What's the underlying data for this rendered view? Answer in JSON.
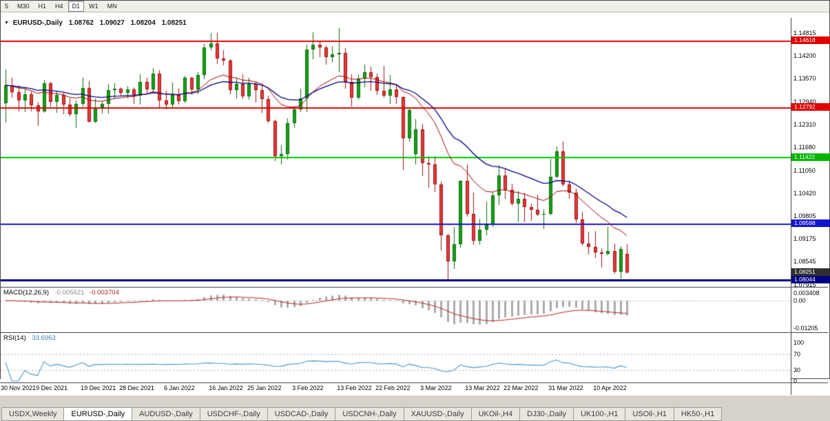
{
  "toolbar": {
    "timeframes": [
      {
        "label": "5",
        "active": false
      },
      {
        "label": "M30",
        "active": false
      },
      {
        "label": "H1",
        "active": false
      },
      {
        "label": "H4",
        "active": false
      },
      {
        "label": "D1",
        "active": true
      },
      {
        "label": "W1",
        "active": false
      },
      {
        "label": "MN",
        "active": false
      }
    ]
  },
  "chart": {
    "header": {
      "symbol": "EURUSD-,Daily",
      "open": "1.08762",
      "high": "1.09027",
      "low": "1.08204",
      "close": "1.08251"
    },
    "price_axis": [
      "1.14815",
      "1.14200",
      "1.13570",
      "1.12940",
      "1.12310",
      "1.11680",
      "1.11050",
      "1.10420",
      "1.09805",
      "1.09175",
      "1.08545",
      "1.07915"
    ],
    "badges": [
      {
        "label": "1.14618",
        "color": "#e00000"
      },
      {
        "label": "1.12792",
        "color": "#e00000"
      },
      {
        "label": "1.11422",
        "color": "#00b400"
      },
      {
        "label": "1.09598",
        "color": "#1414cc"
      },
      {
        "label": "1.08251",
        "color": "#2f2f2f"
      },
      {
        "label": "1.08044",
        "color": "#000080"
      }
    ],
    "date_labels": [
      "30 Nov 2021",
      "9 Dec 2021",
      "19 Dec 2021",
      "28 Dec 2021",
      "6 Jan 2022",
      "16 Jan 2022",
      "25 Jan 2022",
      "3 Feb 2022",
      "13 Feb 2022",
      "22 Feb 2022",
      "3 Mar 2022",
      "13 Mar 2022",
      "22 Mar 2022",
      "31 Mar 2022",
      "10 Apr 2022"
    ]
  },
  "macd": {
    "name": "MACD(12,26,9)",
    "main_value": "-0.005621",
    "signal_value": "-0.003704",
    "axis": [
      "0.003408",
      "0.00",
      "-0.01205"
    ]
  },
  "rsi": {
    "name": "RSI(14)",
    "value": "33.6963",
    "axis": [
      "100",
      "70",
      "30",
      "0"
    ]
  },
  "tabs": [
    {
      "label": "USDX,Weekly",
      "active": false
    },
    {
      "label": "EURUSD-,Daily",
      "active": true
    },
    {
      "label": "AUDUSD-,Daily",
      "active": false
    },
    {
      "label": "USDCHF-,Daily",
      "active": false
    },
    {
      "label": "USDCAD-,Daily",
      "active": false
    },
    {
      "label": "USDCNH-,Daily",
      "active": false
    },
    {
      "label": "XAUUSD-,Daily",
      "active": false
    },
    {
      "label": "UKOil-,H4",
      "active": false
    },
    {
      "label": "DJ30-,Daily",
      "active": false
    },
    {
      "label": "UK100-,H1",
      "active": false
    },
    {
      "label": "USOil-,H1",
      "active": false
    },
    {
      "label": "HK50-,H1",
      "active": false
    }
  ],
  "chart_data": {
    "type": "candlestick",
    "title": "EURUSD-,Daily",
    "symbol": "EURUSD",
    "timeframe": "D1",
    "current_bar": {
      "open": 1.08762,
      "high": 1.09027,
      "low": 1.08204,
      "close": 1.08251
    },
    "y_range": [
      1.0785,
      1.1524
    ],
    "x_tick_labels": [
      "30 Nov 2021",
      "9 Dec 2021",
      "19 Dec 2021",
      "28 Dec 2021",
      "6 Jan 2022",
      "16 Jan 2022",
      "25 Jan 2022",
      "3 Feb 2022",
      "13 Feb 2022",
      "22 Feb 2022",
      "3 Mar 2022",
      "13 Mar 2022",
      "22 Mar 2022",
      "31 Mar 2022",
      "10 Apr 2022"
    ],
    "x_tick_indices": [
      0,
      7,
      14,
      20,
      27,
      34,
      40,
      47,
      54,
      60,
      67,
      74,
      80,
      87,
      94
    ],
    "horizontal_lines": [
      {
        "price": 1.14618,
        "color": "#e00000",
        "width": 2
      },
      {
        "price": 1.12792,
        "color": "#e00000",
        "width": 2
      },
      {
        "price": 1.11422,
        "color": "#00c400",
        "width": 2
      },
      {
        "price": 1.09598,
        "color": "#1414d2",
        "width": 2
      },
      {
        "price": 1.08044,
        "color": "#00007a",
        "width": 3
      }
    ],
    "moving_averages": [
      {
        "type": "ema",
        "period": 15,
        "color": "#a00000",
        "width": 1
      },
      {
        "type": "ema",
        "period": 26,
        "color": "#000080",
        "width": 1.3
      }
    ],
    "candle_colors": {
      "up_fill": "#16a016",
      "up_border": "#0b6b0b",
      "down_fill": "#e23b3b",
      "down_border": "#a01010"
    },
    "indicators": [
      {
        "name": "MACD",
        "params": [
          12,
          26,
          9
        ],
        "current_main": -0.005621,
        "current_signal": -0.003704,
        "histogram_color": "#ababab",
        "signal_color": "#b22222",
        "y_ticks": [
          0.003408,
          0,
          -0.01205
        ]
      },
      {
        "name": "RSI",
        "params": [
          14
        ],
        "current_value": 33.6963,
        "line_color": "#4a96c8",
        "levels": [
          100,
          70,
          30,
          0
        ]
      }
    ],
    "ohlc": [
      [
        1.1289,
        1.1383,
        1.1236,
        1.1339
      ],
      [
        1.1339,
        1.136,
        1.1305,
        1.1319
      ],
      [
        1.1319,
        1.1339,
        1.1267,
        1.1297
      ],
      [
        1.1297,
        1.1334,
        1.1266,
        1.1314
      ],
      [
        1.1314,
        1.1321,
        1.1267,
        1.1284
      ],
      [
        1.1284,
        1.1292,
        1.1228,
        1.1267
      ],
      [
        1.1267,
        1.1354,
        1.1263,
        1.1344
      ],
      [
        1.1344,
        1.1348,
        1.128,
        1.1293
      ],
      [
        1.1293,
        1.1324,
        1.1264,
        1.1313
      ],
      [
        1.1313,
        1.1319,
        1.126,
        1.1286
      ],
      [
        1.1286,
        1.1303,
        1.1253,
        1.126
      ],
      [
        1.126,
        1.1298,
        1.1222,
        1.1288
      ],
      [
        1.1288,
        1.136,
        1.128,
        1.1331
      ],
      [
        1.1331,
        1.135,
        1.1236,
        1.1239
      ],
      [
        1.1239,
        1.1303,
        1.1235,
        1.1278
      ],
      [
        1.1278,
        1.1295,
        1.1262,
        1.1287
      ],
      [
        1.1287,
        1.1342,
        1.1262,
        1.1325
      ],
      [
        1.1325,
        1.1344,
        1.1301,
        1.1329
      ],
      [
        1.1329,
        1.1333,
        1.1308,
        1.1318
      ],
      [
        1.1318,
        1.1336,
        1.1302,
        1.1327
      ],
      [
        1.1327,
        1.1333,
        1.1287,
        1.131
      ],
      [
        1.131,
        1.1369,
        1.1285,
        1.1348
      ],
      [
        1.1348,
        1.136,
        1.1316,
        1.1327
      ],
      [
        1.1327,
        1.1386,
        1.1321,
        1.137
      ],
      [
        1.137,
        1.138,
        1.1279,
        1.1297
      ],
      [
        1.1297,
        1.1323,
        1.1272,
        1.1285
      ],
      [
        1.1285,
        1.1347,
        1.1277,
        1.1312
      ],
      [
        1.1312,
        1.1332,
        1.1285,
        1.1295
      ],
      [
        1.1295,
        1.1366,
        1.1289,
        1.1359
      ],
      [
        1.1359,
        1.1362,
        1.1313,
        1.1327
      ],
      [
        1.1327,
        1.1374,
        1.1314,
        1.1367
      ],
      [
        1.1367,
        1.1453,
        1.1355,
        1.1443
      ],
      [
        1.1443,
        1.1482,
        1.1435,
        1.1455
      ],
      [
        1.1455,
        1.1483,
        1.1398,
        1.1412
      ],
      [
        1.1412,
        1.1435,
        1.1393,
        1.1406
      ],
      [
        1.1406,
        1.141,
        1.1315,
        1.1325
      ],
      [
        1.1325,
        1.1357,
        1.1302,
        1.1343
      ],
      [
        1.1343,
        1.1369,
        1.1301,
        1.1309
      ],
      [
        1.1309,
        1.136,
        1.13,
        1.1343
      ],
      [
        1.1343,
        1.1349,
        1.1291,
        1.1325
      ],
      [
        1.1325,
        1.134,
        1.1263,
        1.1301
      ],
      [
        1.1301,
        1.131,
        1.1234,
        1.124
      ],
      [
        1.124,
        1.1245,
        1.1131,
        1.1144
      ],
      [
        1.1144,
        1.1174,
        1.1121,
        1.1149
      ],
      [
        1.1149,
        1.1248,
        1.1135,
        1.1234
      ],
      [
        1.1234,
        1.128,
        1.1221,
        1.1273
      ],
      [
        1.1273,
        1.133,
        1.1266,
        1.1303
      ],
      [
        1.1303,
        1.1451,
        1.1266,
        1.1438
      ],
      [
        1.1438,
        1.1484,
        1.1411,
        1.1451
      ],
      [
        1.1451,
        1.1459,
        1.1416,
        1.1443
      ],
      [
        1.1443,
        1.1448,
        1.1396,
        1.1416
      ],
      [
        1.1416,
        1.1447,
        1.1402,
        1.1424
      ],
      [
        1.1424,
        1.1495,
        1.1375,
        1.1427
      ],
      [
        1.1427,
        1.144,
        1.1329,
        1.1349
      ],
      [
        1.1349,
        1.1369,
        1.128,
        1.1305
      ],
      [
        1.1305,
        1.1368,
        1.13,
        1.1358
      ],
      [
        1.1358,
        1.1395,
        1.1334,
        1.1374
      ],
      [
        1.1374,
        1.1389,
        1.1324,
        1.1361
      ],
      [
        1.1361,
        1.137,
        1.1312,
        1.1323
      ],
      [
        1.1323,
        1.1391,
        1.1305,
        1.1311
      ],
      [
        1.1311,
        1.1368,
        1.1287,
        1.1327
      ],
      [
        1.1327,
        1.1342,
        1.1287,
        1.1307
      ],
      [
        1.1307,
        1.1309,
        1.1106,
        1.1193
      ],
      [
        1.1193,
        1.1274,
        1.1184,
        1.127
      ],
      [
        1.115,
        1.1247,
        1.1121,
        1.1218
      ],
      [
        1.1218,
        1.1232,
        1.109,
        1.1125
      ],
      [
        1.1125,
        1.1144,
        1.1058,
        1.1121
      ],
      [
        1.1121,
        1.1144,
        1.1045,
        1.1066
      ],
      [
        1.1066,
        1.1074,
        1.0886,
        1.0926
      ],
      [
        1.0926,
        1.0931,
        1.0806,
        1.0854
      ],
      [
        1.0854,
        1.095,
        1.0834,
        1.0902
      ],
      [
        1.0902,
        1.1078,
        1.0893,
        1.1076
      ],
      [
        1.1076,
        1.1121,
        1.0977,
        1.0985
      ],
      [
        1.0985,
        1.1043,
        1.0901,
        1.0911
      ],
      [
        1.0911,
        1.0972,
        1.09,
        1.0941
      ],
      [
        1.0941,
        1.102,
        1.0926,
        1.0955
      ],
      [
        1.0955,
        1.1046,
        1.095,
        1.1036
      ],
      [
        1.1036,
        1.1119,
        1.1009,
        1.1091
      ],
      [
        1.1091,
        1.1111,
        1.1027,
        1.1051
      ],
      [
        1.1051,
        1.1069,
        1.1008,
        1.1014
      ],
      [
        1.1014,
        1.1047,
        1.0962,
        1.1027
      ],
      [
        1.1027,
        1.1044,
        1.0963,
        1.1004
      ],
      [
        1.1004,
        1.1014,
        1.0966,
        1.0997
      ],
      [
        1.0997,
        1.1039,
        1.0979,
        1.0983
      ],
      [
        1.0983,
        1.0999,
        1.0944,
        1.0985
      ],
      [
        1.0985,
        1.1137,
        1.0981,
        1.1088
      ],
      [
        1.1088,
        1.1171,
        1.1084,
        1.1158
      ],
      [
        1.1158,
        1.1184,
        1.1061,
        1.1067
      ],
      [
        1.1067,
        1.1077,
        1.1027,
        1.1044
      ],
      [
        1.1044,
        1.1055,
        1.096,
        1.0971
      ],
      [
        1.0971,
        1.0991,
        1.0898,
        1.0905
      ],
      [
        1.0905,
        1.0937,
        1.0874,
        1.0895
      ],
      [
        1.0895,
        1.0939,
        1.0864,
        1.0879
      ],
      [
        1.0879,
        1.089,
        1.0837,
        1.0876
      ],
      [
        1.0876,
        1.095,
        1.0872,
        1.0884
      ],
      [
        1.0884,
        1.0904,
        1.0821,
        1.0827
      ],
      [
        1.0827,
        1.0896,
        1.0808,
        1.0889
      ],
      [
        1.08762,
        1.09027,
        1.08204,
        1.08251
      ]
    ]
  }
}
